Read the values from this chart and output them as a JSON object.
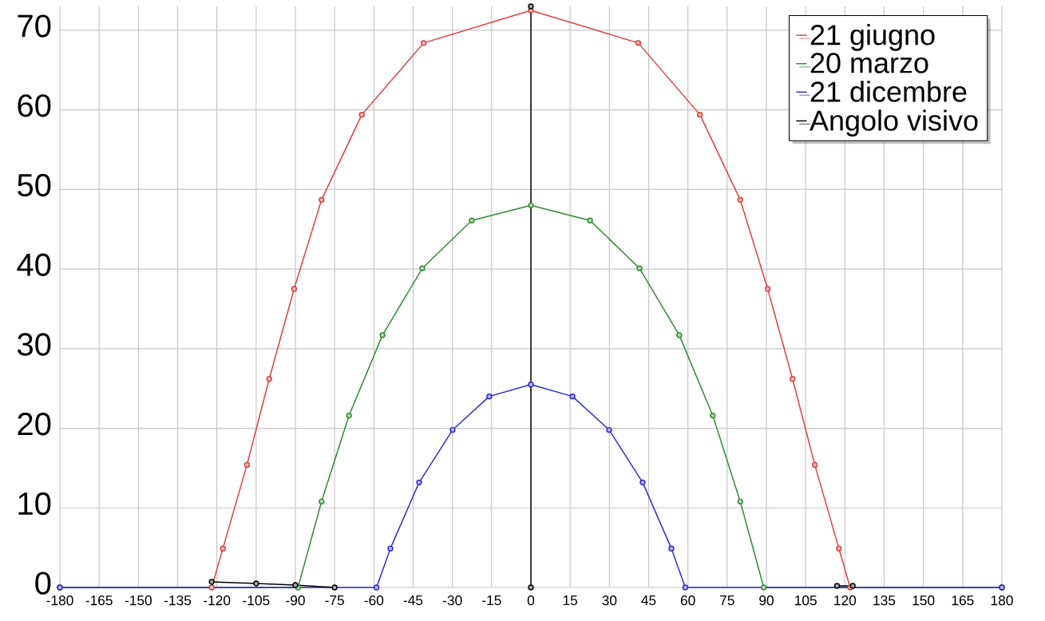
{
  "chart_data": {
    "type": "line",
    "xlim": [
      -180,
      180
    ],
    "ylim": [
      0,
      73
    ],
    "xticks": [
      -180,
      -165,
      -150,
      -135,
      -120,
      -105,
      -90,
      -75,
      -60,
      -45,
      -30,
      -15,
      0,
      15,
      30,
      45,
      60,
      75,
      90,
      105,
      120,
      135,
      150,
      165,
      180
    ],
    "yticks": [
      0,
      10,
      20,
      30,
      40,
      50,
      60,
      70
    ],
    "grid": true,
    "legend": "top right",
    "marker": "circle",
    "line_style": "solid",
    "series": [
      {
        "name": "21 giugno",
        "color": "#e03c3c",
        "x": [
          -180,
          -122,
          -117.7,
          -108.5,
          -100,
          -90.5,
          -80,
          -64.6,
          -41,
          0,
          41,
          64.6,
          80,
          90.5,
          100,
          108.5,
          117.7,
          122,
          180
        ],
        "values": [
          0,
          0,
          4.9,
          15.4,
          26.2,
          37.5,
          48.7,
          59.4,
          68.4,
          72.5,
          68.4,
          59.4,
          48.7,
          37.5,
          26.2,
          15.4,
          4.9,
          0,
          0
        ]
      },
      {
        "name": "20 marzo",
        "color": "#2e8b2e",
        "x": [
          -180,
          -89,
          -80,
          -69.5,
          -56.7,
          -41.5,
          -22.6,
          0,
          22.6,
          41.5,
          56.7,
          69.5,
          80,
          89,
          180
        ],
        "values": [
          0,
          0,
          10.8,
          21.6,
          31.7,
          40.1,
          46.1,
          48.0,
          46.1,
          40.1,
          31.7,
          21.6,
          10.8,
          0,
          0
        ]
      },
      {
        "name": "21 dicembre",
        "color": "#2a2ad0",
        "x": [
          -180,
          -59,
          -53.7,
          -42.7,
          -29.9,
          -15.9,
          0,
          15.9,
          29.9,
          42.7,
          53.7,
          59,
          180
        ],
        "values": [
          0,
          0,
          4.9,
          13.2,
          19.8,
          24.0,
          25.5,
          24.0,
          19.8,
          13.2,
          4.9,
          0,
          0
        ]
      },
      {
        "name": "Angolo visivo",
        "color": "#000000",
        "x": [
          -122,
          -105,
          -90,
          -75,
          -60,
          0,
          0,
          10,
          117,
          123
        ],
        "values": [
          0.7,
          0.5,
          0.3,
          0,
          null,
          0,
          73,
          null,
          0.2,
          0.2
        ]
      }
    ]
  }
}
